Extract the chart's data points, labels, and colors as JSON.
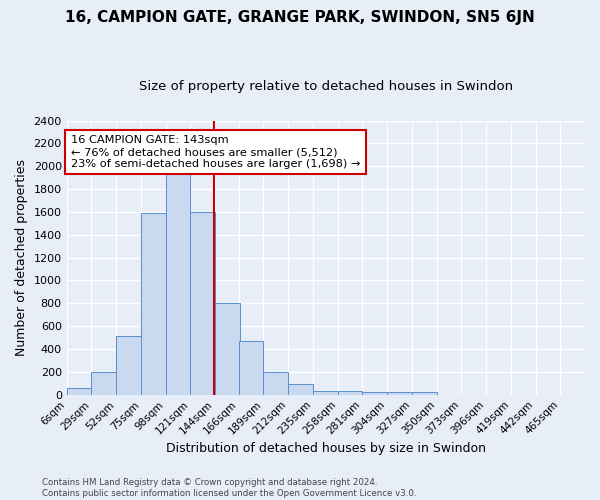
{
  "title1": "16, CAMPION GATE, GRANGE PARK, SWINDON, SN5 6JN",
  "title2": "Size of property relative to detached houses in Swindon",
  "xlabel": "Distribution of detached houses by size in Swindon",
  "ylabel": "Number of detached properties",
  "footnote1": "Contains HM Land Registry data © Crown copyright and database right 2024.",
  "footnote2": "Contains public sector information licensed under the Open Government Licence v3.0.",
  "annotation_line1": "16 CAMPION GATE: 143sqm",
  "annotation_line2": "← 76% of detached houses are smaller (5,512)",
  "annotation_line3": "23% of semi-detached houses are larger (1,698) →",
  "bar_color": "#c9d9f0",
  "bar_edge_color": "#5b8fce",
  "ref_line_color": "#cc0000",
  "ref_line_x": 143,
  "categories": [
    "6sqm",
    "29sqm",
    "52sqm",
    "75sqm",
    "98sqm",
    "121sqm",
    "144sqm",
    "166sqm",
    "189sqm",
    "212sqm",
    "235sqm",
    "258sqm",
    "281sqm",
    "304sqm",
    "327sqm",
    "350sqm",
    "373sqm",
    "396sqm",
    "419sqm",
    "442sqm",
    "465sqm"
  ],
  "bin_edges": [
    6,
    29,
    52,
    75,
    98,
    121,
    144,
    166,
    189,
    212,
    235,
    258,
    281,
    304,
    327,
    350,
    373,
    396,
    419,
    442,
    465
  ],
  "values": [
    55,
    200,
    510,
    1590,
    1950,
    1600,
    800,
    470,
    195,
    95,
    35,
    35,
    25,
    20,
    20,
    0,
    0,
    0,
    0,
    0,
    0
  ],
  "ylim": [
    0,
    2400
  ],
  "yticks": [
    0,
    200,
    400,
    600,
    800,
    1000,
    1200,
    1400,
    1600,
    1800,
    2000,
    2200,
    2400
  ],
  "bg_color": "#e8eef8",
  "grid_color": "#ffffff"
}
